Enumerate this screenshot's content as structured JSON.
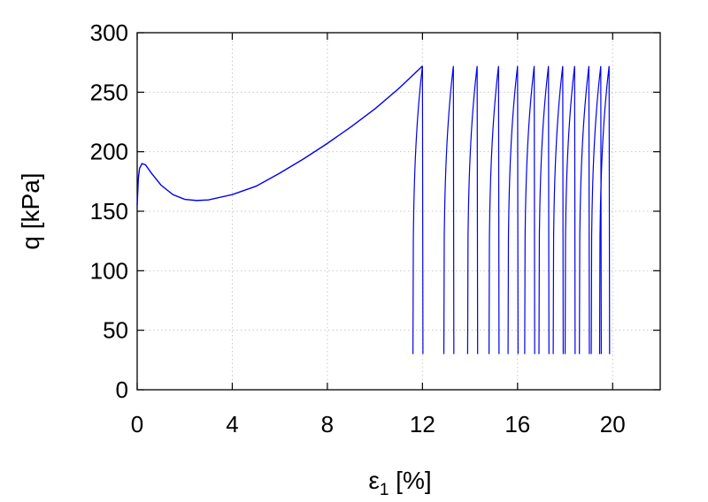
{
  "chart_data": {
    "type": "line",
    "title": "",
    "xlabel": {
      "symbol": "ε",
      "subscript": "1",
      "unit": " [%]"
    },
    "ylabel": "q [kPa]",
    "xlim": [
      0,
      22
    ],
    "ylim": [
      0,
      300
    ],
    "xticks": [
      "0",
      "4",
      "8",
      "12",
      "16",
      "20"
    ],
    "xtick_values": [
      0,
      4,
      8,
      12,
      16,
      20
    ],
    "yticks": [
      "0",
      "50",
      "100",
      "150",
      "200",
      "250",
      "300"
    ],
    "ytick_values": [
      0,
      50,
      100,
      150,
      200,
      250,
      300
    ],
    "grid": true,
    "legend": "none",
    "colors": {
      "line": "#0000ee",
      "axis": "#000000",
      "grid": "#c8c8c8"
    },
    "series": [
      {
        "monotonic_loading": [
          [
            0.0,
            155
          ],
          [
            0.05,
            178
          ],
          [
            0.1,
            186
          ],
          [
            0.2,
            190
          ],
          [
            0.35,
            189
          ],
          [
            0.6,
            182
          ],
          [
            1.0,
            172
          ],
          [
            1.5,
            164
          ],
          [
            2.0,
            160
          ],
          [
            2.5,
            159
          ],
          [
            3.0,
            159.5
          ],
          [
            4.0,
            164
          ],
          [
            5.0,
            171
          ],
          [
            6.0,
            182
          ],
          [
            7.0,
            194
          ],
          [
            8.0,
            207
          ],
          [
            9.0,
            221
          ],
          [
            10.0,
            236
          ],
          [
            11.0,
            253
          ],
          [
            12.0,
            272
          ]
        ],
        "cycles": [
          {
            "x_start": 11.6,
            "x_end": 12.0
          },
          {
            "x_start": 12.9,
            "x_end": 13.3
          },
          {
            "x_start": 13.9,
            "x_end": 14.3
          },
          {
            "x_start": 14.8,
            "x_end": 15.2
          },
          {
            "x_start": 15.6,
            "x_end": 16.0
          },
          {
            "x_start": 16.3,
            "x_end": 16.7
          },
          {
            "x_start": 16.9,
            "x_end": 17.3
          },
          {
            "x_start": 17.5,
            "x_end": 17.9
          },
          {
            "x_start": 18.0,
            "x_end": 18.4
          },
          {
            "x_start": 18.6,
            "x_end": 19.0
          },
          {
            "x_start": 19.1,
            "x_end": 19.5
          },
          {
            "x_start": 19.45,
            "x_end": 19.85
          }
        ],
        "cycle_q_min": 30,
        "cycle_q_max": 272
      }
    ]
  }
}
